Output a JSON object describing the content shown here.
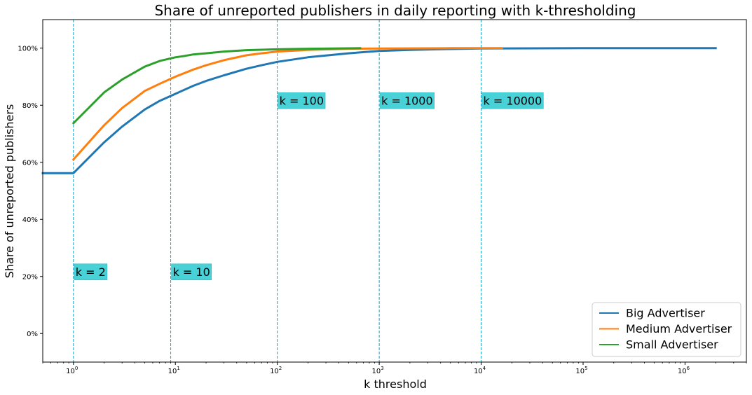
{
  "chart_data": {
    "type": "line",
    "title": "Share of unreported publishers in daily reporting with k-thresholding",
    "xlabel": "k threshold",
    "ylabel": "Share of unreported publishers",
    "x_scale": "log",
    "xlim": [
      0.5,
      4000000
    ],
    "ylim": [
      -0.1,
      1.1
    ],
    "x_ticks": [
      {
        "base": "10",
        "exp": "0",
        "value": 1
      },
      {
        "base": "10",
        "exp": "1",
        "value": 10
      },
      {
        "base": "10",
        "exp": "2",
        "value": 100
      },
      {
        "base": "10",
        "exp": "3",
        "value": 1000
      },
      {
        "base": "10",
        "exp": "4",
        "value": 10000
      },
      {
        "base": "10",
        "exp": "5",
        "value": 100000
      },
      {
        "base": "10",
        "exp": "6",
        "value": 1000000
      }
    ],
    "y_ticks": [
      {
        "label": "0%",
        "value": 0
      },
      {
        "label": "20%",
        "value": 0.2
      },
      {
        "label": "40%",
        "value": 0.4
      },
      {
        "label": "60%",
        "value": 0.6
      },
      {
        "label": "80%",
        "value": 0.8
      },
      {
        "label": "100%",
        "value": 1.0
      }
    ],
    "grid": false,
    "legend_position": "bottom-right",
    "series": [
      {
        "name": "Big Advertiser",
        "color": "#1f77b4",
        "x": [
          0.5,
          1,
          2,
          3,
          5,
          7,
          10,
          15,
          20,
          30,
          50,
          70,
          100,
          200,
          500,
          1000,
          2000,
          5000,
          10000,
          100000,
          1000000,
          2000000
        ],
        "y": [
          0.562,
          0.562,
          0.67,
          0.725,
          0.785,
          0.815,
          0.84,
          0.868,
          0.885,
          0.905,
          0.928,
          0.94,
          0.952,
          0.968,
          0.982,
          0.99,
          0.994,
          0.997,
          0.999,
          1.0,
          1.0,
          1.0
        ]
      },
      {
        "name": "Medium Advertiser",
        "color": "#ff7f0e",
        "x": [
          1,
          2,
          3,
          5,
          7,
          10,
          15,
          20,
          30,
          50,
          70,
          100,
          200,
          500,
          1000,
          5000,
          16000
        ],
        "y": [
          0.61,
          0.73,
          0.79,
          0.85,
          0.875,
          0.9,
          0.925,
          0.94,
          0.958,
          0.975,
          0.982,
          0.988,
          0.994,
          0.998,
          0.999,
          1.0,
          1.0
        ]
      },
      {
        "name": "Small Advertiser",
        "color": "#2ca02c",
        "x": [
          1,
          2,
          3,
          5,
          7,
          10,
          12,
          15,
          20,
          30,
          50,
          100,
          200,
          650
        ],
        "y": [
          0.737,
          0.845,
          0.89,
          0.935,
          0.955,
          0.968,
          0.972,
          0.978,
          0.982,
          0.988,
          0.993,
          0.996,
          0.998,
          1.0
        ]
      }
    ],
    "vlines": [
      {
        "x": 1,
        "label": "k = 2",
        "label_y": 0.2
      },
      {
        "x": 9,
        "label": "k = 10",
        "label_y": 0.2
      },
      {
        "x": 100,
        "label": "k = 100",
        "label_y": 0.8
      },
      {
        "x": 1000,
        "label": "k = 1000",
        "label_y": 0.8
      },
      {
        "x": 10000,
        "label": "k = 10000",
        "label_y": 0.8
      }
    ],
    "annotation_color": "#48d1d6",
    "vline_color": "#17a2c7"
  }
}
